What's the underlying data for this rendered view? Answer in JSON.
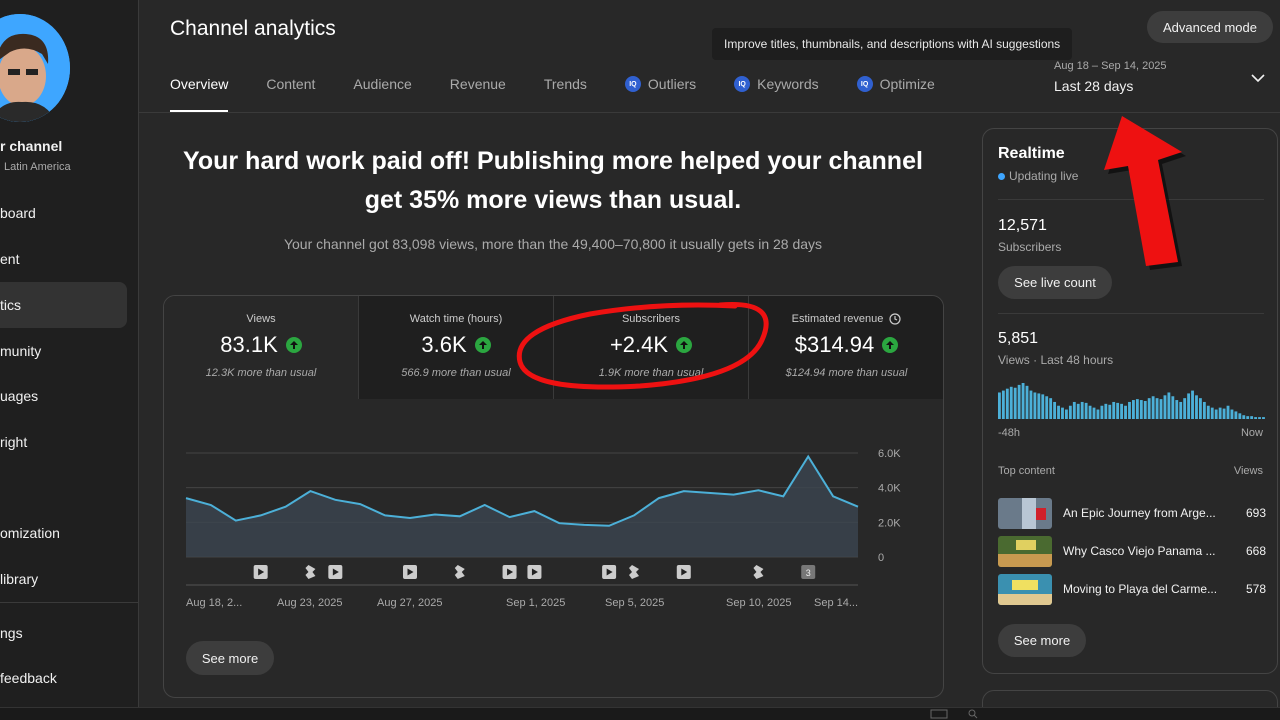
{
  "sidebar": {
    "channel_name": "r channel",
    "channel_sub": "Latin America",
    "items": [
      {
        "label": "board"
      },
      {
        "label": "ent"
      },
      {
        "label": "tics"
      },
      {
        "label": "munity"
      },
      {
        "label": "uages"
      },
      {
        "label": "right"
      },
      {
        "label": "omization"
      },
      {
        "label": "library"
      },
      {
        "label": "ngs"
      },
      {
        "label": "feedback"
      }
    ]
  },
  "header": {
    "title": "Channel analytics",
    "tabs": [
      {
        "label": "Overview",
        "active": true
      },
      {
        "label": "Content"
      },
      {
        "label": "Audience"
      },
      {
        "label": "Revenue"
      },
      {
        "label": "Trends"
      },
      {
        "label": "Outliers",
        "badge": "IQ"
      },
      {
        "label": "Keywords",
        "badge": "IQ"
      },
      {
        "label": "Optimize",
        "badge": "IQ"
      }
    ],
    "tooltip": "Improve titles, thumbnails, and descriptions with AI suggestions",
    "advanced_mode": "Advanced mode",
    "date_range": "Aug 18 – Sep 14, 2025",
    "date_label": "Last 28 days"
  },
  "headline": {
    "line1": "Your hard work paid off! Publishing more helped your channel",
    "line2": "get 35% more views than usual.",
    "sub": "Your channel got 83,098 views, more than the 49,400–70,800 it usually gets in 28 days"
  },
  "metrics": [
    {
      "label": "Views",
      "value": "83.1K",
      "note": "12.3K more than usual"
    },
    {
      "label": "Watch time (hours)",
      "value": "3.6K",
      "note": "566.9 more than usual"
    },
    {
      "label": "Subscribers",
      "value": "+2.4K",
      "note": "1.9K more than usual"
    },
    {
      "label": "Estimated revenue",
      "value": "$314.94",
      "note": "$124.94 more than usual"
    }
  ],
  "chart_data": {
    "type": "area",
    "x_tick_labels": [
      "Aug 18, 2...",
      "Aug 23, 2025",
      "Aug 27, 2025",
      "Sep 1, 2025",
      "Sep 5, 2025",
      "Sep 10, 2025",
      "Sep 14..."
    ],
    "y_tick_labels": [
      "6.0K",
      "4.0K",
      "2.0K",
      "0"
    ],
    "ylim": [
      0,
      6000
    ],
    "values": [
      3400,
      3000,
      2100,
      2400,
      2900,
      3800,
      3300,
      3050,
      2400,
      2250,
      2450,
      2350,
      3000,
      2300,
      2650,
      1950,
      1850,
      1800,
      2400,
      3400,
      3800,
      3700,
      3600,
      3850,
      3500,
      5800,
      3500,
      2900
    ],
    "upload_markers": [
      {
        "day": 3,
        "kind": "video"
      },
      {
        "day": 5,
        "kind": "short"
      },
      {
        "day": 6,
        "kind": "video"
      },
      {
        "day": 9,
        "kind": "video"
      },
      {
        "day": 11,
        "kind": "short"
      },
      {
        "day": 13,
        "kind": "video"
      },
      {
        "day": 14,
        "kind": "video"
      },
      {
        "day": 17,
        "kind": "video"
      },
      {
        "day": 18,
        "kind": "short"
      },
      {
        "day": 20,
        "kind": "video"
      },
      {
        "day": 23,
        "kind": "short"
      },
      {
        "day": 25,
        "kind": "count",
        "label": "3"
      }
    ]
  },
  "see_more": "See more",
  "realtime": {
    "title": "Realtime",
    "updating": "Updating live",
    "subscribers_value": "12,571",
    "subscribers_label": "Subscribers",
    "live_count_button": "See live count",
    "views_value": "5,851",
    "views_label": "Views · Last 48 hours",
    "bars": [
      28,
      30,
      32,
      34,
      33,
      36,
      38,
      35,
      30,
      28,
      27,
      26,
      24,
      22,
      18,
      14,
      12,
      10,
      14,
      18,
      16,
      18,
      17,
      14,
      12,
      10,
      14,
      16,
      15,
      18,
      17,
      16,
      14,
      18,
      20,
      21,
      20,
      19,
      22,
      24,
      22,
      21,
      25,
      28,
      24,
      20,
      18,
      22,
      27,
      30,
      25,
      22,
      18,
      14,
      12,
      10,
      12,
      11,
      14,
      10,
      8,
      6,
      4,
      3,
      3,
      2,
      2,
      2
    ],
    "axis_start": "-48h",
    "axis_end": "Now",
    "top_content_label": "Top content",
    "views_col_label": "Views",
    "top_content": [
      {
        "title": "An Epic Journey from Arge...",
        "views": "693"
      },
      {
        "title": "Why Casco Viejo Panama ...",
        "views": "668"
      },
      {
        "title": "Moving to Playa del Carme...",
        "views": "578"
      }
    ],
    "see_more": "See more"
  },
  "colors": {
    "accent_blue": "#3ea6ff",
    "chart_line": "#4cb0d8",
    "up_green": "#2ba640",
    "annotation_red": "#ee1111"
  }
}
